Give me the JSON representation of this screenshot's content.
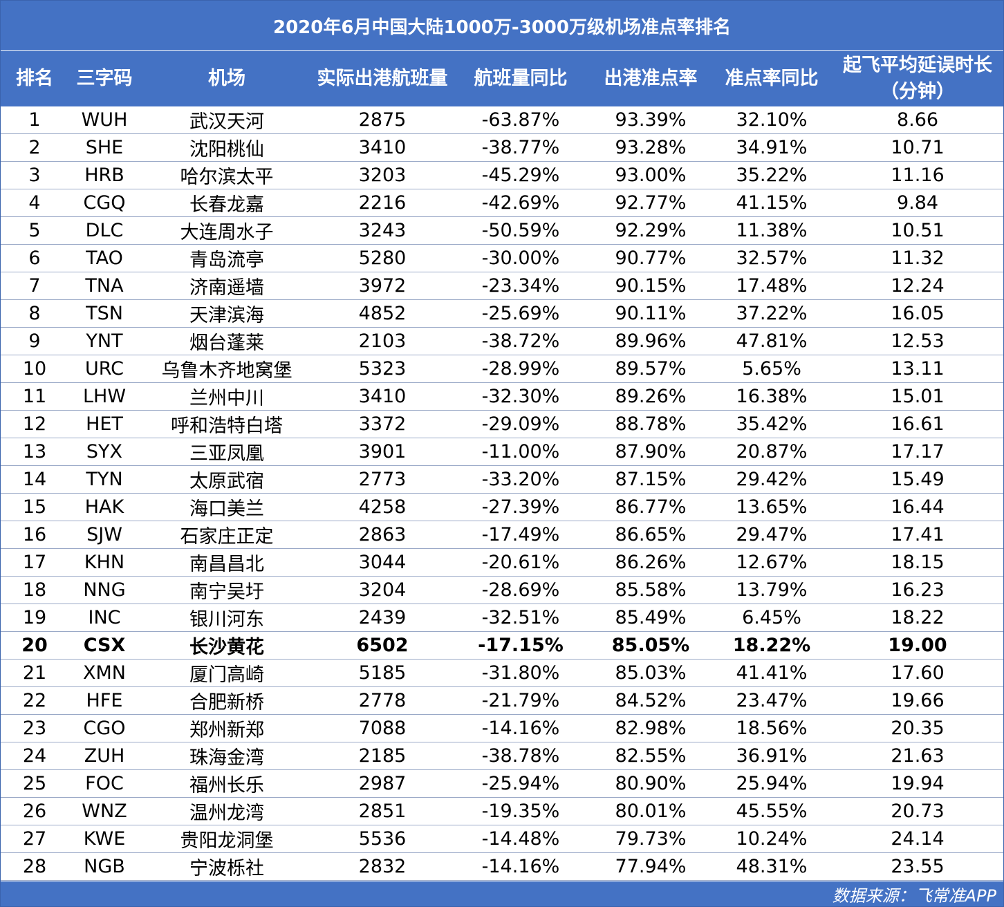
{
  "title": "2020年6月中国大陆1000万-3000万级机场准点率排名",
  "headers": {
    "rank": "排名",
    "code": "三字码",
    "airport": "机场",
    "flights": "实际出港航班量",
    "flights_yoy": "航班量同比",
    "ontime": "出港准点率",
    "ontime_yoy": "准点率同比",
    "delay_line1": "起飞平均延误时长",
    "delay_line2": "（分钟）"
  },
  "rows": [
    {
      "rank": "1",
      "code": "WUH",
      "airport": "武汉天河",
      "flights": "2875",
      "flights_yoy": "-63.87%",
      "ontime": "93.39%",
      "ontime_yoy": "32.10%",
      "delay": "8.66"
    },
    {
      "rank": "2",
      "code": "SHE",
      "airport": "沈阳桃仙",
      "flights": "3410",
      "flights_yoy": "-38.77%",
      "ontime": "93.28%",
      "ontime_yoy": "34.91%",
      "delay": "10.71"
    },
    {
      "rank": "3",
      "code": "HRB",
      "airport": "哈尔滨太平",
      "flights": "3203",
      "flights_yoy": "-45.29%",
      "ontime": "93.00%",
      "ontime_yoy": "35.22%",
      "delay": "11.16"
    },
    {
      "rank": "4",
      "code": "CGQ",
      "airport": "长春龙嘉",
      "flights": "2216",
      "flights_yoy": "-42.69%",
      "ontime": "92.77%",
      "ontime_yoy": "41.15%",
      "delay": "9.84"
    },
    {
      "rank": "5",
      "code": "DLC",
      "airport": "大连周水子",
      "flights": "3243",
      "flights_yoy": "-50.59%",
      "ontime": "92.29%",
      "ontime_yoy": "11.38%",
      "delay": "10.51"
    },
    {
      "rank": "6",
      "code": "TAO",
      "airport": "青岛流亭",
      "flights": "5280",
      "flights_yoy": "-30.00%",
      "ontime": "90.77%",
      "ontime_yoy": "32.57%",
      "delay": "11.32"
    },
    {
      "rank": "7",
      "code": "TNA",
      "airport": "济南遥墙",
      "flights": "3972",
      "flights_yoy": "-23.34%",
      "ontime": "90.15%",
      "ontime_yoy": "17.48%",
      "delay": "12.24"
    },
    {
      "rank": "8",
      "code": "TSN",
      "airport": "天津滨海",
      "flights": "4852",
      "flights_yoy": "-25.69%",
      "ontime": "90.11%",
      "ontime_yoy": "37.22%",
      "delay": "16.05"
    },
    {
      "rank": "9",
      "code": "YNT",
      "airport": "烟台蓬莱",
      "flights": "2103",
      "flights_yoy": "-38.72%",
      "ontime": "89.96%",
      "ontime_yoy": "47.81%",
      "delay": "12.53"
    },
    {
      "rank": "10",
      "code": "URC",
      "airport": "乌鲁木齐地窝堡",
      "flights": "5323",
      "flights_yoy": "-28.99%",
      "ontime": "89.57%",
      "ontime_yoy": "5.65%",
      "delay": "13.11"
    },
    {
      "rank": "11",
      "code": "LHW",
      "airport": "兰州中川",
      "flights": "3410",
      "flights_yoy": "-32.30%",
      "ontime": "89.26%",
      "ontime_yoy": "16.38%",
      "delay": "15.01"
    },
    {
      "rank": "12",
      "code": "HET",
      "airport": "呼和浩特白塔",
      "flights": "3372",
      "flights_yoy": "-29.09%",
      "ontime": "88.78%",
      "ontime_yoy": "35.42%",
      "delay": "16.61"
    },
    {
      "rank": "13",
      "code": "SYX",
      "airport": "三亚凤凰",
      "flights": "3901",
      "flights_yoy": "-11.00%",
      "ontime": "87.90%",
      "ontime_yoy": "20.87%",
      "delay": "17.17"
    },
    {
      "rank": "14",
      "code": "TYN",
      "airport": "太原武宿",
      "flights": "2773",
      "flights_yoy": "-33.20%",
      "ontime": "87.15%",
      "ontime_yoy": "29.42%",
      "delay": "15.49"
    },
    {
      "rank": "15",
      "code": "HAK",
      "airport": "海口美兰",
      "flights": "4258",
      "flights_yoy": "-27.39%",
      "ontime": "86.77%",
      "ontime_yoy": "13.65%",
      "delay": "16.44"
    },
    {
      "rank": "16",
      "code": "SJW",
      "airport": "石家庄正定",
      "flights": "2863",
      "flights_yoy": "-17.49%",
      "ontime": "86.65%",
      "ontime_yoy": "29.47%",
      "delay": "17.41"
    },
    {
      "rank": "17",
      "code": "KHN",
      "airport": "南昌昌北",
      "flights": "3044",
      "flights_yoy": "-20.61%",
      "ontime": "86.26%",
      "ontime_yoy": "12.67%",
      "delay": "18.15"
    },
    {
      "rank": "18",
      "code": "NNG",
      "airport": "南宁吴圩",
      "flights": "3204",
      "flights_yoy": "-28.69%",
      "ontime": "85.58%",
      "ontime_yoy": "13.79%",
      "delay": "16.23"
    },
    {
      "rank": "19",
      "code": "INC",
      "airport": "银川河东",
      "flights": "2439",
      "flights_yoy": "-32.51%",
      "ontime": "85.49%",
      "ontime_yoy": "6.45%",
      "delay": "18.22"
    },
    {
      "rank": "20",
      "code": "CSX",
      "airport": "长沙黄花",
      "flights": "6502",
      "flights_yoy": "-17.15%",
      "ontime": "85.05%",
      "ontime_yoy": "18.22%",
      "delay": "19.00",
      "bold": true
    },
    {
      "rank": "21",
      "code": "XMN",
      "airport": "厦门高崎",
      "flights": "5185",
      "flights_yoy": "-31.80%",
      "ontime": "85.03%",
      "ontime_yoy": "41.41%",
      "delay": "17.60"
    },
    {
      "rank": "22",
      "code": "HFE",
      "airport": "合肥新桥",
      "flights": "2778",
      "flights_yoy": "-21.79%",
      "ontime": "84.52%",
      "ontime_yoy": "23.47%",
      "delay": "19.66"
    },
    {
      "rank": "23",
      "code": "CGO",
      "airport": "郑州新郑",
      "flights": "7088",
      "flights_yoy": "-14.16%",
      "ontime": "82.98%",
      "ontime_yoy": "18.56%",
      "delay": "20.35"
    },
    {
      "rank": "24",
      "code": "ZUH",
      "airport": "珠海金湾",
      "flights": "2185",
      "flights_yoy": "-38.78%",
      "ontime": "82.55%",
      "ontime_yoy": "36.91%",
      "delay": "21.63"
    },
    {
      "rank": "25",
      "code": "FOC",
      "airport": "福州长乐",
      "flights": "2987",
      "flights_yoy": "-25.94%",
      "ontime": "80.90%",
      "ontime_yoy": "25.94%",
      "delay": "19.94"
    },
    {
      "rank": "26",
      "code": "WNZ",
      "airport": "温州龙湾",
      "flights": "2851",
      "flights_yoy": "-19.35%",
      "ontime": "80.01%",
      "ontime_yoy": "45.55%",
      "delay": "20.73"
    },
    {
      "rank": "27",
      "code": "KWE",
      "airport": "贵阳龙洞堡",
      "flights": "5536",
      "flights_yoy": "-14.48%",
      "ontime": "79.73%",
      "ontime_yoy": "10.24%",
      "delay": "24.14"
    },
    {
      "rank": "28",
      "code": "NGB",
      "airport": "宁波栎社",
      "flights": "2832",
      "flights_yoy": "-14.16%",
      "ontime": "77.94%",
      "ontime_yoy": "48.31%",
      "delay": "23.55"
    }
  ],
  "footer": "数据来源：飞常准APP",
  "colors": {
    "header_bg": "#4472c4",
    "header_text": "#ffffff",
    "row_border": "#9aa9c7"
  }
}
